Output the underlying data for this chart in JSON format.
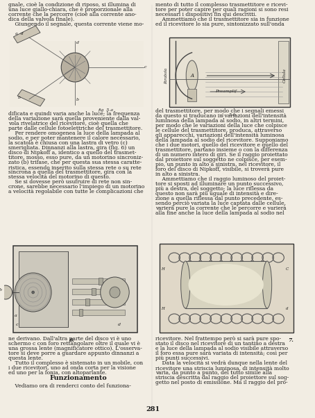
{
  "page_number": "281",
  "bg": "#f2ede3",
  "tc": "#1a1a1a",
  "col1_top": [
    "gnale, cioè la condizione di riposo, si illumina di",
    "una luce giallo-chiara, che è proporzionale alla",
    "corrente che la percorre (cioè alla corrente ano-",
    "dica della valvola finale).",
    "    Giungendo il segnale, questa corrente viene mo-"
  ],
  "col1_mid": [
    "dificata e quindi varia anche la luce; la frequenza",
    "della variazione sarà quella proveniente dalla val-",
    "vola rivelatrice del ricevitore, cioè quella che",
    "parte dalle cellule fotoelettriche del trasmettitore.",
    "    Per rendere omogenea la luce della lampada al",
    "sodio, e per poter mantenere il calore necessario,",
    "la scatola è chiusa con una lastra di vetro (c)",
    "smerigliata. Dinnanzi alla lastra, gira (fig. 6) un",
    "disco di Nipkoff a, identico a quello del trasmet-",
    "titore, mosso, esso pure, da un motorino sincroniz-",
    "zato (b) trifase, che per questa sua stessa caratte-",
    "ristica, essendo inserito sulla stessa rete o su rete",
    "sincrona a quella del trasmettitore, gira con la",
    "stessa velocità del motorino di questo.",
    "    Se si dovesse però usufruire di rete non sin-",
    "crone, sarebbe necessario l'impiego di un motorino",
    "a velocità regolabile con tutte le complicazioni che"
  ],
  "col1_bot": [
    "ne derivano. Dall'altra parte del disco vi è uno",
    "schermo c con foro rettangolare oltre il quale vi è",
    "una grossa lente (magnificatore ottico). L'osserva-",
    "tore si deve porre a guardare appunto dinnanzi a",
    "questa lente.",
    "    Tutto il complesso è sistemato in un mobile, con",
    "i due ricevitori, uno ad onda corta per la visione",
    "ed uno per la fonia, con altoparlante."
  ],
  "col1_title": "Funzionamento",
  "col1_last": "    Vediamo ora di renderci conto del funziona-",
  "col2_top": [
    "mento di tutto il complesso trasmettitore e ricevi-",
    "tore per poter capire per quali ragioni si sono resi",
    "necessari i dispositivi fin qui descritti.",
    "    Ammettiamo che il trasmettitore sia in funzione",
    "ed il ricevitore lo sia pure, sintonizzato sull'onda"
  ],
  "col2_mid": [
    "del trasmettitore, per modo che i segnali emessi",
    "da questo si traducano in variazioni dell'intensità",
    "luminosa della lampada al sodio, in altri termini,",
    "per modo che le variazioni della luce che colpisce",
    "le cellule del trasmettitore, produca, attraverso",
    "gli apparecchi, variazioni dell'intensità luminosa",
    "della lampada al sodio del ricevitore. Supponiamo",
    "che i due motori, quello del ricevitore e quello del",
    "trasmettitore, partano insieme o con la differenza",
    "di un numero intero di giri. Se il raggio proiettato",
    "dal proiettore sul soggetto ne colpisce, per esem-",
    "pio, un punto in alto a sinistra, nel ricevitore, il",
    "foro del disco di Nipkoff, visibile, si troverà pure",
    "in alto a sinistra.",
    "    Ammettiamo che il raggio luminoso del proiet-",
    "tore si sposti ad illuminare un punto successivo,",
    "più a destra, del soggetto; la luce riflessa da",
    "questo non sarà più uguale di intensità e dire-",
    "zione a quella riflessa dal punto precedente, es-",
    "sendo perciò variata la luce captata dalle cellule,",
    "varierà pure la corrente che le percorre e varierà",
    "alla fine anche la luce della lampada al sodio nel"
  ],
  "col2_bot": [
    "ricevitore. Nel frattempo però si sarà pure spo-",
    "stato il disco nel ricevitore di un tantino a destra",
    "e la luce della lampada al sodio visibile attraverso",
    "il foro essa pure sarà variata di intensità; così per",
    "più punti successivi.",
    "    Data la velocità si vedrà dunque nella lente del",
    "ricevitore una striscia luminosa, di intensità molto",
    "varia, da punto a punto, del tutto simile alla",
    "striscia descritta dal raggio del proiettore sul sog-",
    "getto nel posto di emissione. Ma il raggio del pro-"
  ]
}
